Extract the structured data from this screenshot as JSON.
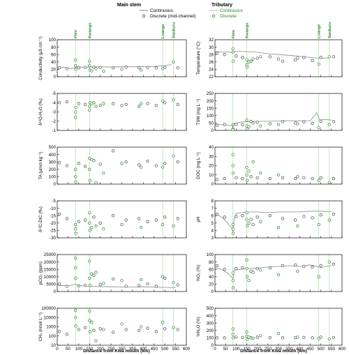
{
  "legend": {
    "main_stem_title": "Main stem",
    "main_continuous": "Continuous",
    "main_discrete": "Discrete (mid-channel)",
    "tributary_title": "Tributary",
    "trib_continuous": "Continuous",
    "trib_discrete": "Discrete",
    "colors": {
      "main": "#444444",
      "tributary": "#1f8a1f",
      "continuous_line": "#888888"
    }
  },
  "xaxis": {
    "label": "Distance from Kwa mouth (km)",
    "range": [
      0,
      600
    ],
    "ticks": [
      0,
      50,
      100,
      150,
      200,
      250,
      300,
      350,
      400,
      450,
      500,
      550,
      600
    ]
  },
  "tributaries": [
    {
      "name": "Fimi",
      "km": 85
    },
    {
      "name": "Kwango",
      "km": 150
    },
    {
      "name": "Loange",
      "km": 490
    },
    {
      "name": "Sankuru",
      "km": 540
    }
  ],
  "chart_data": [
    {
      "type": "scatter",
      "ylabel": "Conductivity (µS cm⁻¹)",
      "ylim": [
        0,
        100
      ],
      "yticks": [
        0,
        20,
        40,
        60,
        80,
        100
      ],
      "continuous": {
        "x": [
          0,
          30,
          60,
          85,
          90,
          120,
          150,
          200,
          250,
          300,
          350,
          400,
          450,
          500,
          530
        ],
        "y": [
          22,
          26,
          22,
          24,
          27,
          26,
          26,
          27,
          26,
          27,
          27,
          27,
          28,
          30,
          33
        ]
      },
      "main_discrete": {
        "x": [
          10,
          45,
          100,
          130,
          170,
          200,
          260,
          320,
          380,
          420,
          460,
          500,
          560
        ],
        "y": [
          24,
          22,
          24,
          25,
          26,
          25,
          24,
          26,
          24,
          25,
          24,
          25,
          24
        ]
      },
      "tributary_discrete": {
        "x": [
          85,
          85,
          86,
          150,
          150,
          152,
          160,
          180,
          215,
          300,
          390,
          490,
          540
        ],
        "y": [
          45,
          30,
          20,
          42,
          30,
          18,
          16,
          22,
          15,
          20,
          18,
          22,
          40
        ]
      }
    },
    {
      "type": "scatter",
      "ylabel": "δ¹⁸O-H₂O (‰)",
      "ylim": [
        -5,
        -1
      ],
      "inverted": true,
      "yticks": [
        -5,
        -4,
        -3,
        -2,
        -1
      ],
      "main_discrete": {
        "x": [
          10,
          45,
          100,
          130,
          170,
          200,
          260,
          320,
          380,
          420,
          460,
          500,
          560
        ],
        "y": [
          -4.0,
          -4.1,
          -3.9,
          -3.8,
          -4.0,
          -3.7,
          -3.9,
          -3.8,
          -3.6,
          -3.9,
          -3.7,
          -4.0,
          -3.8
        ]
      },
      "tributary_discrete": {
        "x": [
          85,
          85,
          86,
          150,
          150,
          152,
          160,
          180,
          215,
          300,
          390,
          490,
          540
        ],
        "y": [
          -2.4,
          -3.0,
          -3.5,
          -3.2,
          -3.6,
          -4.0,
          -3.9,
          -3.6,
          -3.9,
          -3.7,
          -3.9,
          -4.2,
          -4.3
        ]
      }
    },
    {
      "type": "scatter",
      "ylabel": "TA (µmol kg⁻¹)",
      "ylim": [
        0,
        500
      ],
      "yticks": [
        0,
        100,
        200,
        300,
        400,
        500
      ],
      "main_discrete": {
        "x": [
          10,
          45,
          100,
          130,
          170,
          200,
          260,
          320,
          380,
          420,
          460,
          500,
          560
        ],
        "y": [
          290,
          250,
          280,
          240,
          320,
          270,
          450,
          300,
          260,
          310,
          250,
          280,
          300
        ]
      },
      "tributary_discrete": {
        "x": [
          85,
          85,
          86,
          150,
          150,
          152,
          160,
          180,
          215,
          300,
          390,
          490,
          540
        ],
        "y": [
          200,
          100,
          30,
          350,
          200,
          50,
          330,
          20,
          150,
          280,
          230,
          230,
          380
        ]
      }
    },
    {
      "type": "scatter",
      "ylabel": "δ¹³C-DIC (‰)",
      "ylim": [
        -30,
        -5
      ],
      "yticks": [
        -30,
        -25,
        -20,
        -15,
        -10,
        -5
      ],
      "main_discrete": {
        "x": [
          10,
          45,
          100,
          130,
          170,
          200,
          260,
          320,
          380,
          420,
          460,
          500,
          560
        ],
        "y": [
          -14,
          -17,
          -19,
          -18,
          -16,
          -20,
          -15,
          -18,
          -17,
          -19,
          -18,
          -16,
          -17
        ]
      },
      "tributary_discrete": {
        "x": [
          85,
          85,
          86,
          150,
          150,
          152,
          160,
          180,
          215,
          300,
          390,
          490,
          540
        ],
        "y": [
          -21,
          -24,
          -27,
          -13,
          -20,
          -25,
          -23,
          -22,
          -24,
          -21,
          -23,
          -21,
          -22
        ]
      }
    },
    {
      "type": "scatter",
      "ylabel": "pCO₂ (ppm)",
      "ylim": [
        0,
        25000
      ],
      "yticks": [
        0,
        5000,
        10000,
        15000,
        20000,
        25000
      ],
      "continuous": {
        "x": [
          0,
          30,
          60,
          85,
          90,
          120,
          150,
          200,
          250,
          300,
          350,
          400,
          450,
          500,
          550
        ],
        "y": [
          4200,
          3900,
          4000,
          5000,
          4500,
          3800,
          3500,
          3400,
          3200,
          3100,
          3000,
          3200,
          3000,
          2800,
          2600
        ]
      },
      "main_discrete": {
        "x": [
          10,
          45,
          100,
          130,
          170,
          200,
          260,
          320,
          380,
          420,
          460,
          500,
          560
        ],
        "y": [
          5000,
          3600,
          3800,
          4200,
          11000,
          4800,
          8500,
          3600,
          4200,
          5200,
          3500,
          9000,
          4500
        ]
      },
      "tributary_discrete": {
        "x": [
          85,
          85,
          86,
          150,
          150,
          152,
          160,
          180,
          215,
          300,
          390,
          490,
          540
        ],
        "y": [
          22500,
          16000,
          9000,
          20500,
          9000,
          4000,
          12000,
          13000,
          5500,
          7500,
          8000,
          10000,
          6000
        ]
      }
    },
    {
      "type": "scatter",
      "ylabel": "CH₄ (nmol L⁻¹)",
      "ylim": [
        10,
        100000
      ],
      "log": true,
      "yticks": [
        10,
        100,
        1000,
        10000,
        100000
      ],
      "main_discrete": {
        "x": [
          10,
          45,
          100,
          130,
          170,
          200,
          260,
          320,
          380,
          420,
          460,
          500,
          560
        ],
        "y": [
          300,
          150,
          500,
          800,
          400,
          600,
          250,
          500,
          400,
          700,
          300,
          600,
          500
        ]
      },
      "tributary_discrete": {
        "x": [
          85,
          85,
          86,
          150,
          150,
          152,
          160,
          180,
          215,
          300,
          390,
          490,
          540
        ],
        "y": [
          60000,
          10000,
          1200,
          50000,
          5000,
          300,
          3000,
          30,
          500,
          2000,
          1000,
          3000,
          800
        ]
      }
    },
    {
      "type": "scatter",
      "ylabel": "Temperature (°C)",
      "ylim": [
        22,
        32
      ],
      "yticks": [
        22,
        24,
        26,
        28,
        30,
        32
      ],
      "continuous": {
        "x": [
          0,
          40,
          85,
          100,
          150,
          200,
          250,
          300,
          350,
          400,
          450,
          500,
          540
        ],
        "y": [
          28.8,
          28.7,
          28.6,
          28.9,
          28.8,
          28.6,
          28.2,
          28.0,
          27.8,
          27.5,
          27.2,
          27.0,
          27.1
        ]
      },
      "main_discrete": {
        "x": [
          10,
          45,
          100,
          130,
          170,
          200,
          260,
          320,
          380,
          420,
          460,
          500,
          560
        ],
        "y": [
          28.4,
          28.0,
          27.6,
          27.2,
          26.2,
          27.0,
          27.4,
          26.2,
          26.6,
          27.2,
          26.4,
          27.2,
          27.4
        ]
      },
      "tributary_discrete": {
        "x": [
          85,
          85,
          86,
          150,
          150,
          152,
          160,
          180,
          215,
          300,
          390,
          490,
          540
        ],
        "y": [
          29.6,
          28.6,
          26.2,
          26.6,
          25.2,
          24.6,
          26.0,
          26.8,
          27.4,
          26.8,
          27.0,
          25.4,
          27.4
        ]
      }
    },
    {
      "type": "scatter",
      "ylabel": "TSM (mg L⁻¹)",
      "ylim": [
        0,
        250
      ],
      "yticks": [
        0,
        50,
        100,
        150,
        200,
        250
      ],
      "continuous": {
        "x": [
          0,
          40,
          80,
          85,
          90,
          120,
          150,
          200,
          250,
          300,
          350,
          400,
          450,
          480,
          495,
          510,
          550
        ],
        "y": [
          40,
          38,
          35,
          20,
          45,
          55,
          60,
          62,
          62,
          64,
          66,
          65,
          66,
          120,
          70,
          75,
          70
        ]
      },
      "main_discrete": {
        "x": [
          10,
          45,
          100,
          130,
          170,
          200,
          260,
          320,
          380,
          420,
          460,
          500,
          560
        ],
        "y": [
          35,
          40,
          42,
          38,
          60,
          55,
          45,
          60,
          50,
          58,
          48,
          62,
          60
        ]
      },
      "tributary_discrete": {
        "x": [
          85,
          85,
          86,
          150,
          150,
          152,
          160,
          180,
          215,
          300,
          390,
          490,
          540
        ],
        "y": [
          10,
          5,
          40,
          70,
          30,
          10,
          25,
          50,
          30,
          40,
          45,
          20,
          40
        ]
      }
    },
    {
      "type": "scatter",
      "ylabel": "DOC (mg L⁻¹)",
      "ylim": [
        0,
        40
      ],
      "yticks": [
        0,
        10,
        20,
        30,
        40
      ],
      "main_discrete": {
        "x": [
          10,
          45,
          100,
          130,
          170,
          200,
          260,
          320,
          380,
          420,
          460,
          500,
          560
        ],
        "y": [
          5,
          6,
          7,
          6,
          8,
          7,
          6,
          7,
          6,
          7,
          6,
          7,
          6
        ]
      },
      "tributary_discrete": {
        "x": [
          85,
          85,
          86,
          150,
          150,
          152,
          160,
          180,
          215,
          300,
          390,
          490,
          540
        ],
        "y": [
          32,
          20,
          12,
          18,
          10,
          4,
          14,
          24,
          12,
          10,
          8,
          4,
          2
        ]
      }
    },
    {
      "type": "scatter",
      "ylabel": "pH",
      "ylim": [
        3,
        8
      ],
      "yticks": [
        3,
        4,
        5,
        6,
        7,
        8
      ],
      "continuous": {
        "x": [
          0,
          20,
          40,
          60,
          70,
          80,
          85,
          90,
          100,
          120,
          150,
          200,
          250,
          300,
          350,
          400,
          450,
          500,
          550
        ],
        "y": [
          6.3,
          6.0,
          5.6,
          5.0,
          4.6,
          4.3,
          3.8,
          5.5,
          6.3,
          6.4,
          6.5,
          6.5,
          6.4,
          6.5,
          6.5,
          6.5,
          6.6,
          6.6,
          6.5
        ]
      },
      "main_discrete": {
        "x": [
          10,
          45,
          100,
          130,
          170,
          200,
          260,
          320,
          380,
          420,
          460,
          500,
          560
        ],
        "y": [
          6.2,
          5.8,
          5.9,
          6.0,
          5.5,
          5.8,
          6.0,
          5.6,
          5.4,
          5.9,
          5.7,
          6.1,
          6.2
        ]
      },
      "tributary_discrete": {
        "x": [
          85,
          85,
          86,
          150,
          150,
          152,
          160,
          180,
          215,
          300,
          390,
          490,
          540
        ],
        "y": [
          4.8,
          4.2,
          3.6,
          6.4,
          5.5,
          4.6,
          5.0,
          4.8,
          5.2,
          4.4,
          4.6,
          4.8,
          5.4
        ]
      }
    },
    {
      "type": "scatter",
      "ylabel": "%O₂ (%)",
      "ylim": [
        0,
        100
      ],
      "yticks": [
        0,
        20,
        40,
        60,
        80,
        100
      ],
      "continuous": {
        "x": [
          0,
          30,
          60,
          85,
          90,
          120,
          150,
          200,
          250,
          300,
          350,
          400,
          450,
          500,
          550
        ],
        "y": [
          65,
          60,
          50,
          35,
          58,
          60,
          62,
          64,
          66,
          68,
          70,
          68,
          72,
          65,
          70
        ]
      },
      "main_discrete": {
        "x": [
          10,
          45,
          100,
          130,
          170,
          200,
          260,
          320,
          380,
          420,
          460,
          500,
          560
        ],
        "y": [
          70,
          60,
          62,
          64,
          55,
          62,
          64,
          70,
          72,
          68,
          66,
          70,
          74
        ]
      },
      "tributary_discrete": {
        "x": [
          85,
          85,
          86,
          150,
          150,
          152,
          160,
          180,
          215,
          300,
          390,
          490,
          540
        ],
        "y": [
          30,
          50,
          10,
          85,
          62,
          40,
          30,
          52,
          58,
          45,
          55,
          40,
          80
        ]
      }
    },
    {
      "type": "scatter",
      "ylabel": "%N₂O (%)",
      "ylim": [
        0,
        500
      ],
      "yticks": [
        0,
        100,
        200,
        300,
        400,
        500
      ],
      "main_discrete": {
        "x": [
          10,
          45,
          100,
          130,
          170,
          200,
          260,
          320,
          380,
          420,
          460,
          500,
          560
        ],
        "y": [
          100,
          100,
          110,
          105,
          100,
          108,
          102,
          100,
          104,
          106,
          100,
          110,
          105
        ]
      },
      "tributary_discrete": {
        "x": [
          85,
          85,
          86,
          150,
          150,
          152,
          160,
          180,
          215,
          300,
          390,
          490,
          540
        ],
        "y": [
          220,
          150,
          100,
          180,
          120,
          80,
          110,
          95,
          130,
          160,
          110,
          90,
          85
        ]
      }
    }
  ]
}
